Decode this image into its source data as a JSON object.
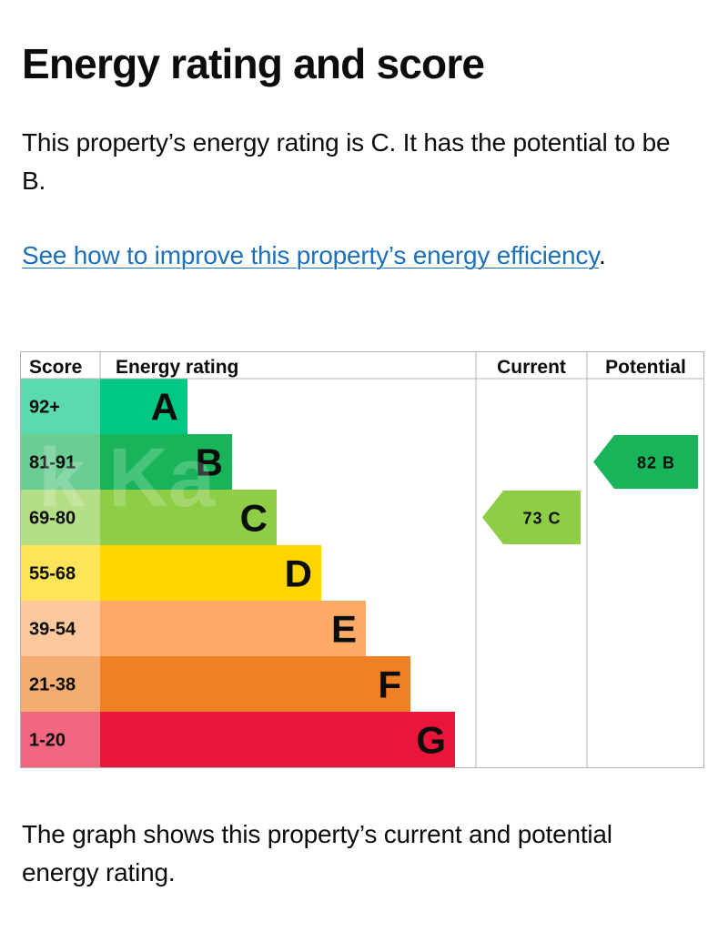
{
  "heading": "Energy rating and score",
  "intro": "This property’s energy rating is C. It has the potential to be B.",
  "improve_link": "See how to improve this property’s energy efficiency",
  "improve_link_suffix": ".",
  "footer_text": "The graph shows this property’s current and potential energy rating.",
  "watermark": "k Ka",
  "colors": {
    "A": "#00c781",
    "B": "#19b459",
    "C": "#8dce46",
    "D": "#ffd500",
    "E": "#fcaa65",
    "F": "#ef8023",
    "G": "#e9153b",
    "grid": "#b1b4b6"
  },
  "chart_data": {
    "type": "table",
    "headers": {
      "score": "Score",
      "rating": "Energy rating",
      "current": "Current",
      "potential": "Potential"
    },
    "bands": [
      {
        "letter": "A",
        "range": "92+",
        "min": 92,
        "max": 100,
        "color": "#00c781"
      },
      {
        "letter": "B",
        "range": "81-91",
        "min": 81,
        "max": 91,
        "color": "#19b459"
      },
      {
        "letter": "C",
        "range": "69-80",
        "min": 69,
        "max": 80,
        "color": "#8dce46"
      },
      {
        "letter": "D",
        "range": "55-68",
        "min": 55,
        "max": 68,
        "color": "#ffd500"
      },
      {
        "letter": "E",
        "range": "39-54",
        "min": 39,
        "max": 54,
        "color": "#fcaa65"
      },
      {
        "letter": "F",
        "range": "21-38",
        "min": 21,
        "max": 38,
        "color": "#ef8023"
      },
      {
        "letter": "G",
        "range": "1-20",
        "min": 1,
        "max": 20,
        "color": "#e9153b"
      }
    ],
    "current": {
      "score": 73,
      "letter": "C",
      "label": "73 C",
      "color": "#8dce46"
    },
    "potential": {
      "score": 82,
      "letter": "B",
      "label": "82 B",
      "color": "#19b459"
    }
  }
}
